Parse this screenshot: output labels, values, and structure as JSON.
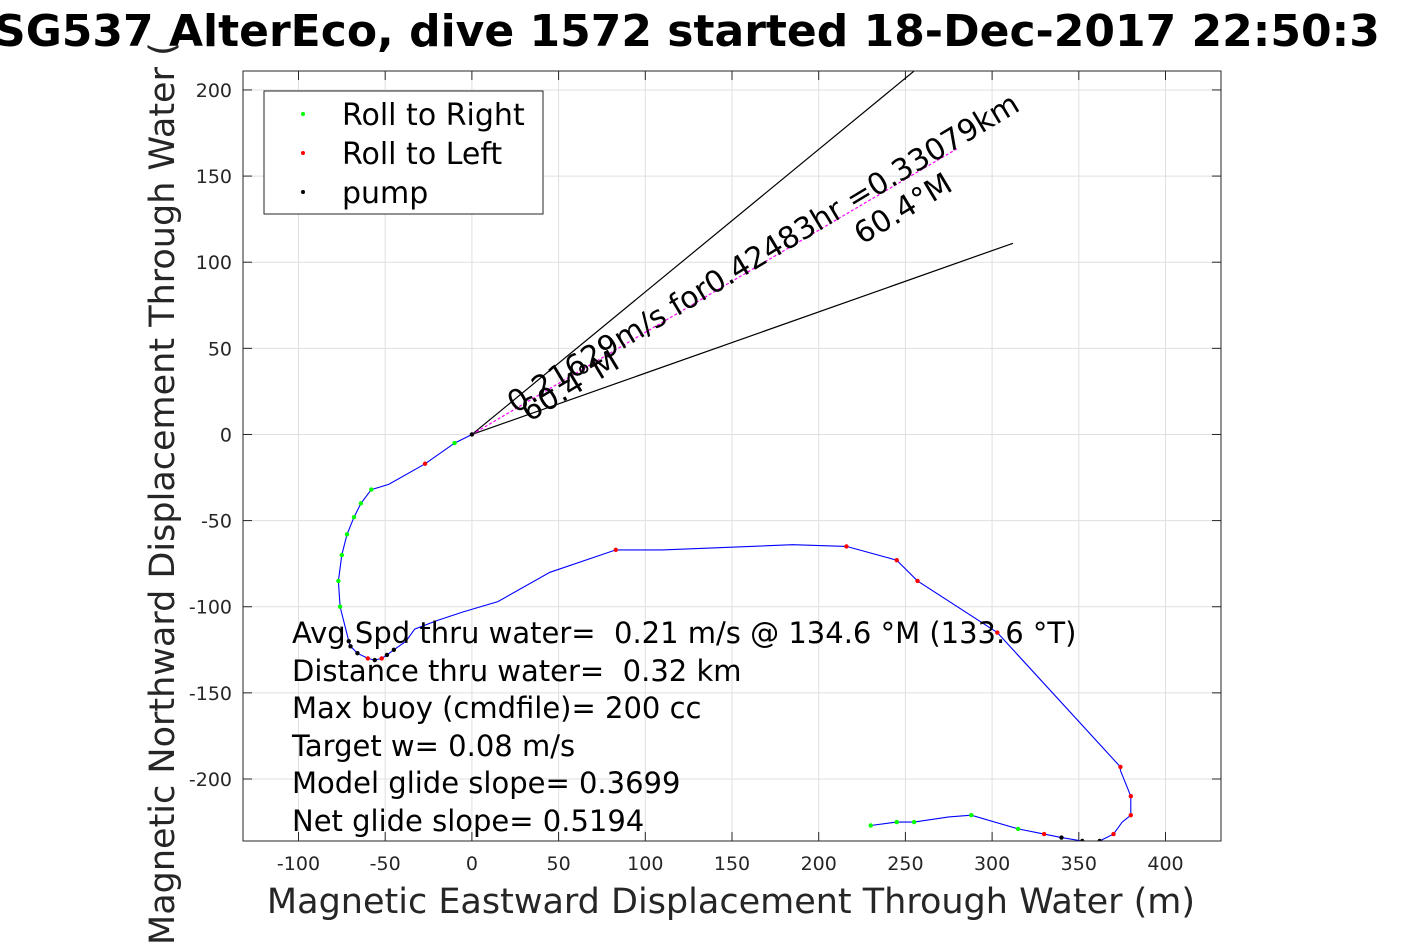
{
  "chart_data": {
    "type": "line",
    "title": "SG537 AlterEco, dive 1572 started 18-Dec-2017 22:50:3",
    "xlabel": "Magnetic Eastward Displacement Through Water (m)",
    "ylabel": "Magnetic Northward Displacement Through Water (",
    "xlim": [
      -132,
      432
    ],
    "ylim": [
      -236,
      211
    ],
    "x_ticks": [
      -100,
      -50,
      0,
      50,
      100,
      150,
      200,
      250,
      300,
      350,
      400
    ],
    "y_ticks": [
      -200,
      -150,
      -100,
      -50,
      0,
      50,
      100,
      150,
      200
    ],
    "grid": true,
    "legend_position": "top-left",
    "legend": [
      {
        "label": "Roll to Right",
        "color": "#00ff00"
      },
      {
        "label": "Roll to Left",
        "color": "#ff0000"
      },
      {
        "label": "pump",
        "color": "#000000"
      }
    ],
    "track": {
      "color": "#0000ff",
      "x": [
        0,
        -10,
        -27,
        -48,
        -58,
        -64,
        -68,
        -72,
        -75,
        -77,
        -76,
        -73,
        -71,
        -70,
        -66,
        -60,
        -56,
        -52,
        -49,
        -45,
        -38,
        -33,
        -20,
        -5,
        15,
        45,
        83,
        110,
        185,
        216,
        245,
        257,
        303,
        374,
        374,
        380,
        380,
        375,
        370,
        362,
        352,
        340,
        330,
        315,
        288,
        275,
        255,
        245,
        230
      ],
      "y": [
        0,
        -5,
        -17,
        -29,
        -32,
        -40,
        -48,
        -58,
        -70,
        -85,
        -100,
        -112,
        -120,
        -123,
        -127,
        -130,
        -131,
        -130,
        -128,
        -125,
        -120,
        -113,
        -108,
        -103,
        -97,
        -80,
        -67,
        -67,
        -64,
        -65,
        -73,
        -85,
        -115,
        -193,
        -195,
        -210,
        -221,
        -225,
        -232,
        -236,
        -236,
        -234,
        -232,
        -229,
        -221,
        -222,
        -225,
        -225,
        -227
      ]
    },
    "markers_roll_right": {
      "x": [
        -10,
        -58,
        -64,
        -68,
        -72,
        -75,
        -77,
        -76,
        255,
        245,
        230,
        288,
        315
      ],
      "y": [
        -5,
        -32,
        -40,
        -48,
        -58,
        -70,
        -85,
        -100,
        -225,
        -225,
        -227,
        -221,
        -229
      ]
    },
    "markers_roll_left": {
      "x": [
        -27,
        -60,
        -52,
        83,
        216,
        245,
        257,
        303,
        374,
        380,
        380,
        370,
        330
      ],
      "y": [
        -17,
        -130,
        -130,
        -67,
        -65,
        -73,
        -85,
        -115,
        -193,
        -210,
        -221,
        -232,
        -232
      ]
    },
    "markers_pump": {
      "x": [
        0,
        -71,
        -70,
        -66,
        -56,
        -49,
        -45,
        352,
        362,
        340
      ],
      "y": [
        0,
        -120,
        -123,
        -127,
        -131,
        -128,
        -125,
        -236,
        -236,
        -234
      ]
    },
    "heading_line": {
      "x": [
        0,
        280
      ],
      "y": [
        0,
        166
      ],
      "color": "#ff00ff"
    },
    "wedge_lines": [
      {
        "x": [
          0,
          255
        ],
        "y": [
          0,
          211
        ],
        "color": "#000000"
      },
      {
        "x": [
          0,
          312
        ],
        "y": [
          0,
          111
        ],
        "color": "#000000"
      }
    ],
    "annotations": [
      {
        "text": "0.21629m/s for0.42483hr =0.33079km",
        "x": 25,
        "y": 12,
        "angle": 31
      },
      {
        "text": "60.4°M",
        "x": 33,
        "y": 7,
        "angle": 31
      },
      {
        "text": "60.4°M",
        "x": 225,
        "y": 110,
        "angle": 31
      }
    ],
    "stats": [
      "Avg Spd thru water=  0.21 m/s @ 134.6 °M (133.6 °T)",
      "Distance thru water=  0.32 km",
      "Max buoy (cmdfile)= 200 cc",
      "Target w= 0.08 m/s",
      "Model glide slope= 0.3699",
      "Net glide slope= 0.5194"
    ]
  }
}
